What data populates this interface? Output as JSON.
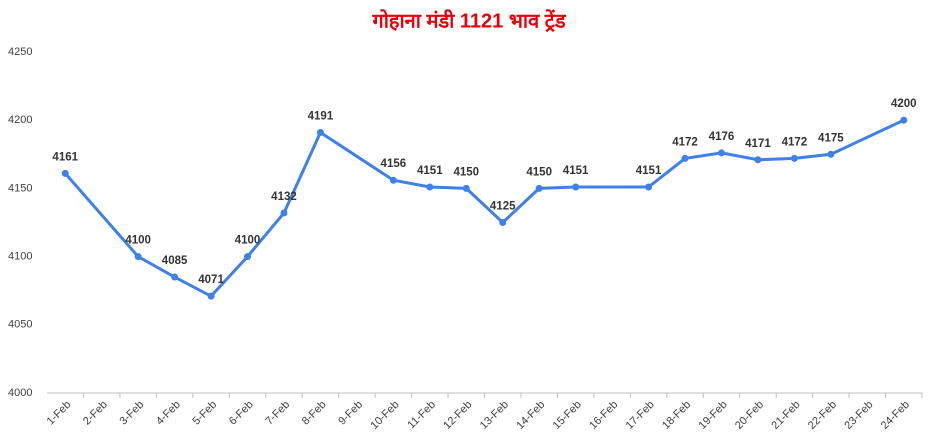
{
  "chart_data": {
    "type": "line",
    "title": "गोहाना मंडी 1121 भाव ट्रेंड",
    "categories": [
      "1-Feb",
      "2-Feb",
      "3-Feb",
      "4-Feb",
      "5-Feb",
      "6-Feb",
      "7-Feb",
      "8-Feb",
      "9-Feb",
      "10-Feb",
      "11-Feb",
      "12-Feb",
      "13-Feb",
      "14-Feb",
      "15-Feb",
      "16-Feb",
      "17-Feb",
      "18-Feb",
      "19-Feb",
      "20-Feb",
      "21-Feb",
      "22-Feb",
      "23-Feb",
      "24-Feb"
    ],
    "series": [
      {
        "name": "भाव",
        "color": "#3f80ea",
        "values": [
          4161,
          null,
          4100,
          4085,
          4071,
          4100,
          4132,
          4191,
          null,
          4156,
          4151,
          4150,
          4125,
          4150,
          4151,
          null,
          4151,
          4172,
          4176,
          4171,
          4172,
          4175,
          null,
          4200
        ]
      }
    ],
    "ylim": [
      4000,
      4250
    ],
    "yticks": [
      4000,
      4050,
      4100,
      4150,
      4200,
      4250
    ],
    "grid": false,
    "span_gaps": true,
    "data_labels": true
  }
}
